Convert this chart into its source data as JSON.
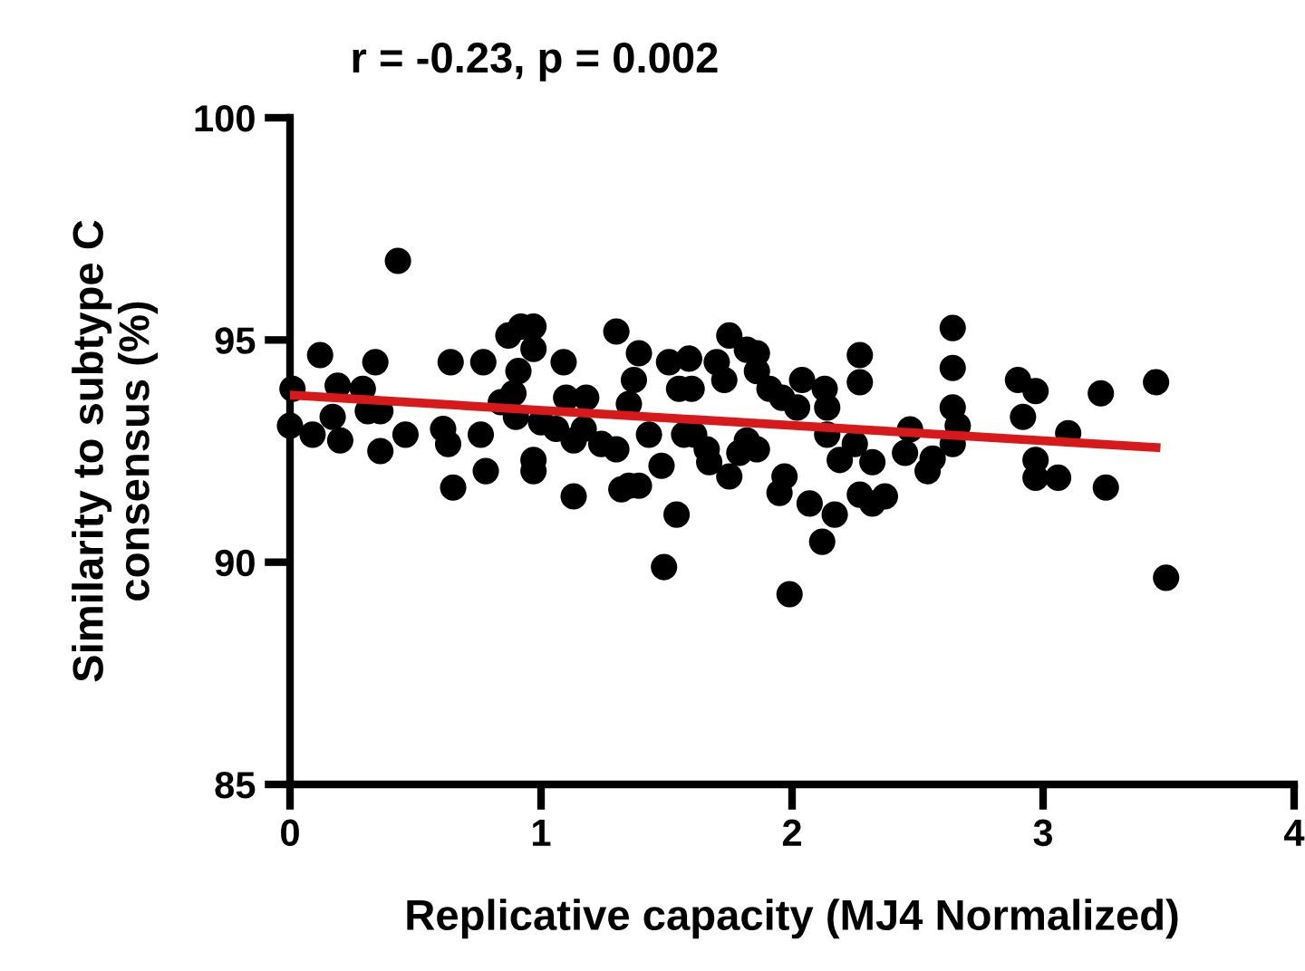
{
  "chart_data": {
    "type": "scatter",
    "title": "r = -0.23, p = 0.002",
    "xlabel": "Replicative capacity (MJ4 Normalized)",
    "ylabel": "Similarity to subtype C\nconsensus (%)",
    "xlim": [
      0,
      4
    ],
    "xticks": [
      0,
      1,
      2,
      3,
      4
    ],
    "ylim": [
      85,
      100
    ],
    "yticks": [
      85,
      90,
      95,
      100
    ],
    "grid": false,
    "legend": false,
    "marker": "circle",
    "series": [
      {
        "color": "#000000",
        "x": [
          0.43,
          0.01,
          0,
          0.12,
          0.09,
          0.19,
          0.17,
          0.2,
          0.29,
          0.31,
          0.36,
          0.34,
          0.36,
          0.46,
          0.64,
          0.61,
          0.63,
          0.65,
          0.77,
          0.76,
          0.78,
          0.87,
          0.92,
          0.97,
          0.97,
          0.91,
          0.89,
          0.84,
          0.9,
          0.97,
          0.97,
          1.0,
          1.09,
          1.1,
          1.06,
          1.13,
          1.18,
          1.17,
          1.13,
          1.24,
          1.3,
          1.3,
          1.32,
          1.39,
          1.37,
          1.35,
          1.35,
          1.39,
          1.43,
          1.48,
          1.54,
          1.49,
          1.51,
          1.59,
          1.55,
          1.6,
          1.57,
          1.61,
          1.66,
          1.67,
          1.75,
          1.7,
          1.73,
          1.75,
          1.79,
          1.82,
          1.86,
          1.82,
          1.86,
          1.86,
          1.91,
          1.96,
          2.02,
          2.04,
          1.97,
          1.95,
          2.07,
          1.99,
          2.13,
          2.14,
          2.14,
          2.17,
          2.12,
          2.19,
          2.25,
          2.27,
          2.27,
          2.27,
          2.32,
          2.37,
          2.32,
          2.47,
          2.45,
          2.54,
          2.56,
          2.64,
          2.64,
          2.64,
          2.66,
          2.64,
          2.9,
          2.97,
          2.92,
          3.1,
          2.97,
          2.97,
          3.06,
          3.23,
          3.25,
          3.45,
          3.49
        ],
        "values": [
          96.78,
          93.9,
          93.07,
          94.66,
          92.87,
          93.97,
          93.27,
          92.74,
          93.9,
          93.4,
          93.4,
          94.5,
          92.5,
          92.87,
          94.5,
          93.0,
          92.66,
          91.68,
          94.5,
          92.87,
          92.05,
          95.1,
          95.3,
          95.3,
          94.8,
          94.3,
          93.8,
          93.6,
          93.27,
          92.3,
          92.05,
          93.15,
          94.5,
          93.7,
          93.0,
          92.74,
          93.7,
          93.0,
          91.48,
          92.66,
          92.54,
          95.19,
          91.64,
          94.7,
          94.1,
          93.56,
          91.72,
          91.72,
          92.87,
          92.17,
          91.07,
          89.89,
          94.5,
          94.58,
          93.9,
          93.9,
          92.87,
          92.87,
          92.54,
          92.25,
          95.1,
          94.5,
          94.1,
          91.93,
          92.46,
          92.74,
          92.54,
          94.78,
          94.7,
          94.3,
          93.9,
          93.7,
          93.48,
          94.1,
          91.93,
          91.56,
          91.32,
          89.28,
          93.9,
          93.48,
          92.87,
          91.07,
          90.46,
          92.3,
          92.66,
          94.66,
          94.05,
          91.52,
          92.25,
          91.48,
          91.32,
          92.99,
          92.46,
          92.05,
          92.33,
          95.27,
          94.37,
          93.48,
          93.07,
          92.66,
          94.1,
          93.85,
          93.27,
          92.9,
          92.3,
          91.9,
          91.9,
          93.8,
          91.68,
          94.05,
          89.65
        ]
      },
      {
        "type": "line",
        "color": "#d7191c",
        "x": [
          0,
          3.45
        ],
        "values": [
          93.76,
          92.58
        ],
        "line_style": "solid",
        "marker": "none"
      }
    ]
  }
}
